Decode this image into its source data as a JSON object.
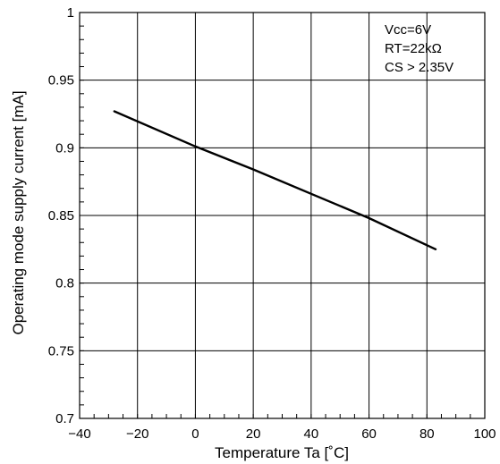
{
  "chart_data": {
    "type": "line",
    "xlabel": "Temperature Ta [˚C]",
    "ylabel": "Operating mode supply current [mA]",
    "xlim": [
      -40,
      100
    ],
    "ylim": [
      0.7,
      1.0
    ],
    "x_ticks": [
      -40,
      -20,
      0,
      20,
      40,
      60,
      80,
      100
    ],
    "y_ticks": [
      0.7,
      0.75,
      0.8,
      0.85,
      0.9,
      0.95,
      1.0
    ],
    "x_tick_labels": [
      "−40",
      "−20",
      "0",
      "20",
      "40",
      "60",
      "80",
      "100"
    ],
    "y_tick_labels": [
      "0.7",
      "0.75",
      "0.8",
      "0.85",
      "0.9",
      "0.95",
      "1"
    ],
    "grid": true,
    "annotations": [
      "Vcc=6V",
      "RT=22kΩ",
      "CS > 2.35V"
    ],
    "series": [
      {
        "x": [
          -28,
          0,
          20,
          40,
          60,
          83
        ],
        "y": [
          0.927,
          0.901,
          0.884,
          0.866,
          0.848,
          0.825
        ]
      }
    ]
  }
}
